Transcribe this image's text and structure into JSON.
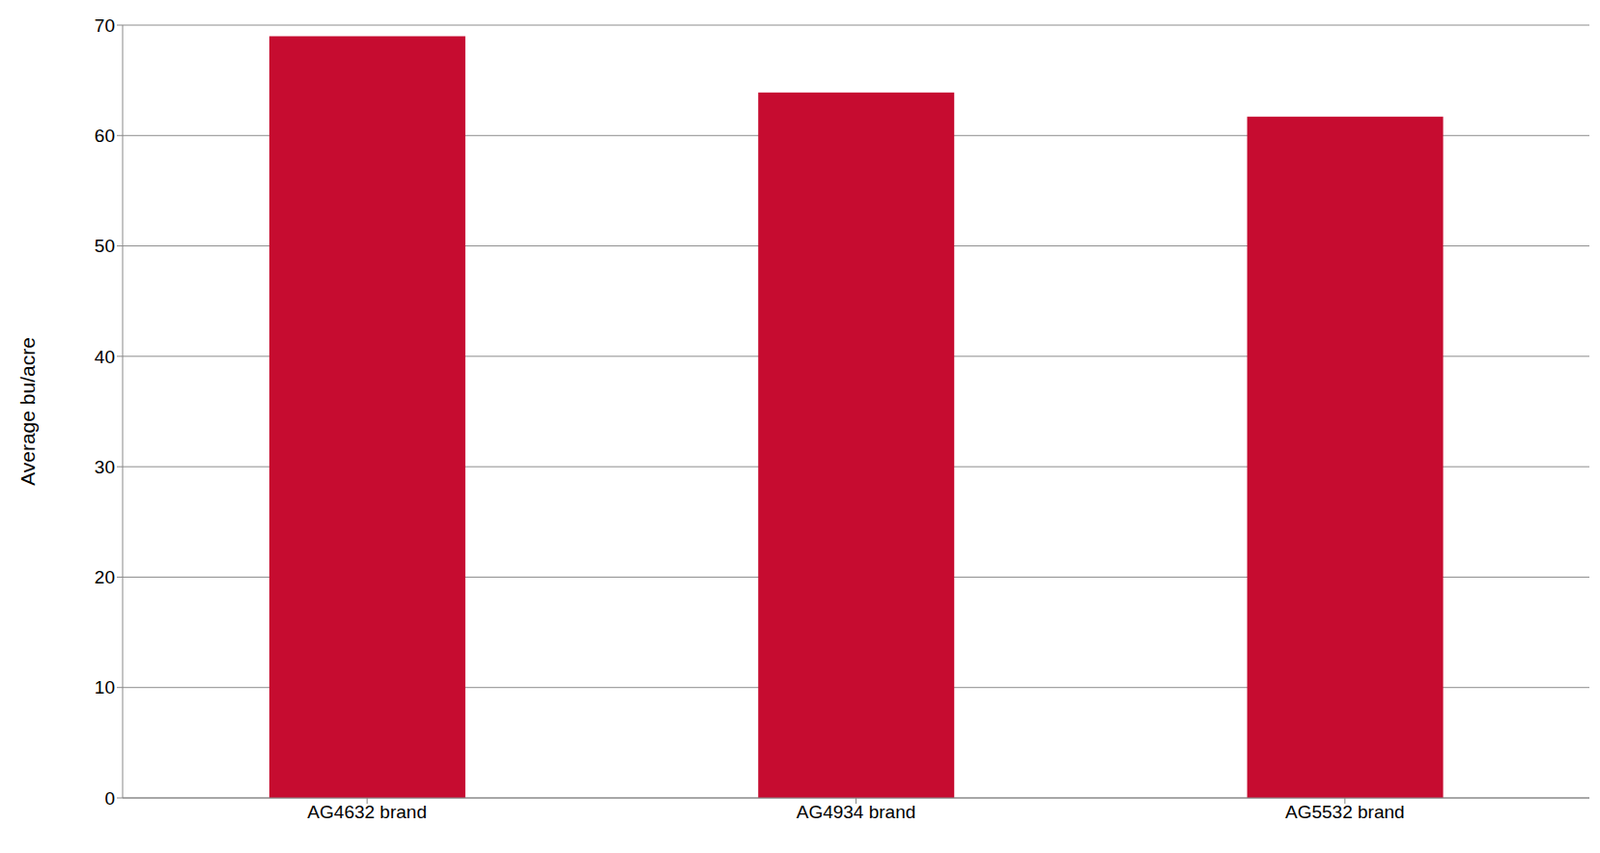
{
  "chart_data": {
    "type": "bar",
    "categories": [
      "AG4632 brand",
      "AG4934 brand",
      "AG5532 brand"
    ],
    "values": [
      69.0,
      63.9,
      61.7
    ],
    "color": "#c60c30",
    "y_label": "Average bu/acre",
    "ylim": [
      0,
      70
    ],
    "yticks": [
      0,
      10,
      20,
      30,
      40,
      50,
      60,
      70
    ],
    "grid": true
  }
}
